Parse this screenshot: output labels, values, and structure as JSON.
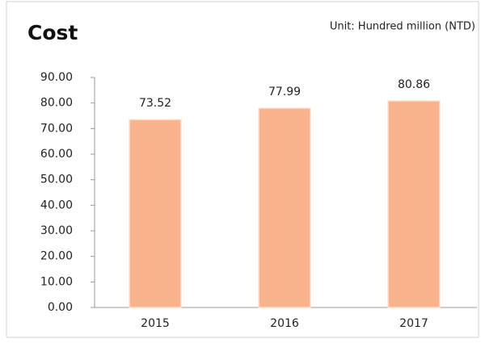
{
  "chart_data": {
    "type": "bar",
    "title": "Cost",
    "subtitle": "Unit: Hundred million (NTD)",
    "categories": [
      "2015",
      "2016",
      "2017"
    ],
    "values": [
      73.52,
      77.99,
      80.86
    ],
    "color": "#f9b48e",
    "ylim": [
      0,
      90
    ],
    "yticks": [
      {
        "value": 0,
        "label": "0.00"
      },
      {
        "value": 10,
        "label": "10.00"
      },
      {
        "value": 20,
        "label": "20.00"
      },
      {
        "value": 30,
        "label": "30.00"
      },
      {
        "value": 40,
        "label": "40.00"
      },
      {
        "value": 50,
        "label": "50.00"
      },
      {
        "value": 60,
        "label": "60.00"
      },
      {
        "value": 70,
        "label": "70.00"
      },
      {
        "value": 80,
        "label": "80.00"
      },
      {
        "value": 90,
        "label": "90.00"
      }
    ],
    "grid": false
  }
}
